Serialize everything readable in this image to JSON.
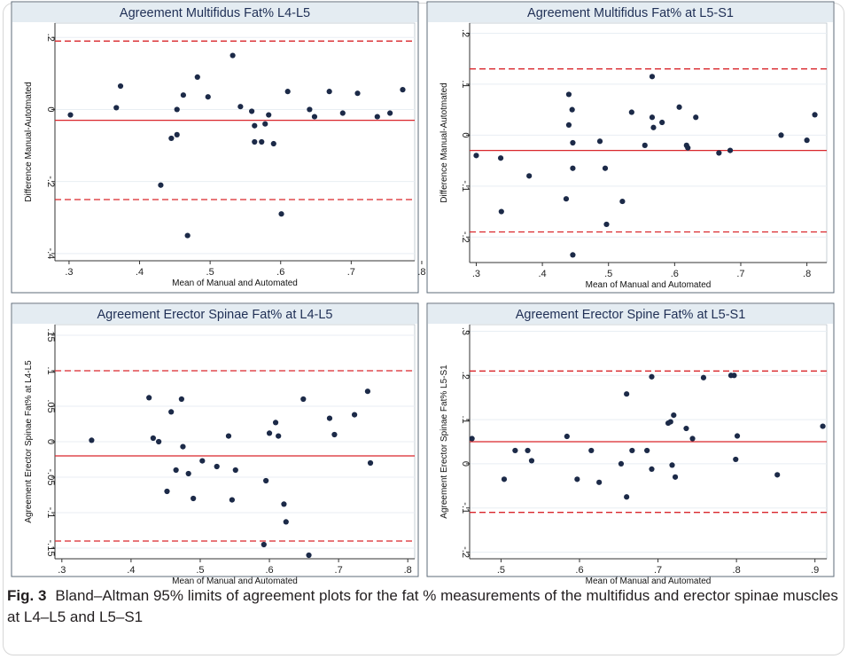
{
  "caption": {
    "label": "Fig. 3",
    "text": "Bland–Altman 95% limits of agreement plots for the fat % measurements of the multifidus and erector spinae muscles at L4–L5 and L5–S1"
  },
  "colors": {
    "mean_line": "#d9262b",
    "limit_line": "#d9262b",
    "point": "#1c2a48",
    "title_band": "#e4ecf2",
    "grid": "#e8eef3",
    "panel_border": "#5c6b7a"
  },
  "chart_data": [
    {
      "type": "scatter",
      "title": "Agreement Multifidus Fat% L4-L5",
      "xlabel": "Mean of Manual and Automated",
      "ylabel": "Difference Manual-Autotmated",
      "xlim": [
        0.28,
        0.79
      ],
      "ylim": [
        -0.42,
        0.24
      ],
      "xticks": [
        0.3,
        0.4,
        0.5,
        0.6,
        0.7,
        0.8
      ],
      "xtick_labels": [
        ".3",
        ".4",
        ".5",
        ".6",
        ".7",
        ".8"
      ],
      "yticks": [
        -0.4,
        -0.2,
        0,
        0.2
      ],
      "ytick_labels": [
        "-.4",
        "-.2",
        "0",
        ".2"
      ],
      "mean_difference": -0.03,
      "limits_of_agreement": [
        -0.25,
        0.19
      ],
      "grid": true,
      "points": [
        [
          0.302,
          -0.015
        ],
        [
          0.367,
          0.005
        ],
        [
          0.373,
          0.065
        ],
        [
          0.43,
          -0.21
        ],
        [
          0.445,
          -0.08
        ],
        [
          0.453,
          -0.07
        ],
        [
          0.453,
          0.0
        ],
        [
          0.462,
          0.04
        ],
        [
          0.468,
          -0.35
        ],
        [
          0.482,
          0.09
        ],
        [
          0.497,
          0.035
        ],
        [
          0.532,
          0.15
        ],
        [
          0.543,
          0.008
        ],
        [
          0.559,
          -0.005
        ],
        [
          0.563,
          -0.09
        ],
        [
          0.563,
          -0.045
        ],
        [
          0.573,
          -0.09
        ],
        [
          0.578,
          -0.04
        ],
        [
          0.583,
          -0.015
        ],
        [
          0.59,
          -0.095
        ],
        [
          0.601,
          -0.29
        ],
        [
          0.61,
          0.05
        ],
        [
          0.641,
          0.0
        ],
        [
          0.648,
          -0.02
        ],
        [
          0.669,
          0.05
        ],
        [
          0.688,
          -0.01
        ],
        [
          0.709,
          0.045
        ],
        [
          0.737,
          -0.02
        ],
        [
          0.755,
          -0.01
        ],
        [
          0.773,
          0.055
        ]
      ]
    },
    {
      "type": "scatter",
      "title": "Agreement Multifidus Fat% at L5-S1",
      "xlabel": "Mean of Manual and Automated",
      "ylabel": "Difference Manual-Autotmated",
      "xlim": [
        0.29,
        0.83
      ],
      "ylim": [
        -0.25,
        0.22
      ],
      "xticks": [
        0.3,
        0.4,
        0.5,
        0.6,
        0.7,
        0.8
      ],
      "xtick_labels": [
        ".3",
        ".4",
        ".5",
        ".6",
        ".7",
        ".8"
      ],
      "yticks": [
        -0.2,
        -0.1,
        0,
        0.1,
        0.2
      ],
      "ytick_labels": [
        "-.2",
        "-.1",
        "0",
        ".1",
        ".2"
      ],
      "mean_difference": -0.03,
      "limits_of_agreement": [
        -0.19,
        0.13
      ],
      "grid": true,
      "points": [
        [
          0.3,
          -0.04
        ],
        [
          0.337,
          -0.045
        ],
        [
          0.338,
          -0.15
        ],
        [
          0.38,
          -0.08
        ],
        [
          0.436,
          -0.125
        ],
        [
          0.44,
          0.08
        ],
        [
          0.44,
          0.02
        ],
        [
          0.445,
          0.05
        ],
        [
          0.446,
          -0.015
        ],
        [
          0.446,
          -0.065
        ],
        [
          0.446,
          -0.235
        ],
        [
          0.487,
          -0.012
        ],
        [
          0.495,
          -0.065
        ],
        [
          0.497,
          -0.175
        ],
        [
          0.521,
          -0.13
        ],
        [
          0.535,
          0.045
        ],
        [
          0.555,
          -0.02
        ],
        [
          0.566,
          0.115
        ],
        [
          0.566,
          0.035
        ],
        [
          0.568,
          0.015
        ],
        [
          0.581,
          0.025
        ],
        [
          0.607,
          0.055
        ],
        [
          0.618,
          -0.02
        ],
        [
          0.62,
          -0.025
        ],
        [
          0.632,
          0.035
        ],
        [
          0.667,
          -0.035
        ],
        [
          0.684,
          -0.03
        ],
        [
          0.761,
          0.0
        ],
        [
          0.8,
          -0.01
        ],
        [
          0.812,
          0.04
        ]
      ]
    },
    {
      "type": "scatter",
      "title": "Agreement Erector Spinae Fat% at L4-L5",
      "xlabel": "Mean of Manual and Automated",
      "ylabel": "Agreement Erector Spinae Fat% at L4-L5",
      "xlim": [
        0.29,
        0.81
      ],
      "ylim": [
        -0.165,
        0.165
      ],
      "xticks": [
        0.3,
        0.4,
        0.5,
        0.6,
        0.7,
        0.8
      ],
      "xtick_labels": [
        ".3",
        ".4",
        ".5",
        ".6",
        ".7",
        ".8"
      ],
      "yticks": [
        -0.15,
        -0.1,
        -0.05,
        0,
        0.05,
        0.1,
        0.15
      ],
      "ytick_labels": [
        "-.15",
        "-.1",
        "-.05",
        "0",
        ".05",
        ".1",
        ".15"
      ],
      "mean_difference": -0.02,
      "limits_of_agreement": [
        -0.14,
        0.1
      ],
      "grid": true,
      "points": [
        [
          0.343,
          0.002
        ],
        [
          0.426,
          0.062
        ],
        [
          0.432,
          0.005
        ],
        [
          0.44,
          0.0
        ],
        [
          0.452,
          -0.07
        ],
        [
          0.458,
          0.042
        ],
        [
          0.465,
          -0.04
        ],
        [
          0.473,
          0.06
        ],
        [
          0.475,
          -0.007
        ],
        [
          0.483,
          -0.045
        ],
        [
          0.49,
          -0.08
        ],
        [
          0.503,
          -0.027
        ],
        [
          0.524,
          -0.035
        ],
        [
          0.541,
          0.008
        ],
        [
          0.546,
          -0.082
        ],
        [
          0.551,
          -0.04
        ],
        [
          0.592,
          -0.145
        ],
        [
          0.595,
          -0.055
        ],
        [
          0.6,
          0.012
        ],
        [
          0.609,
          0.027
        ],
        [
          0.613,
          0.008
        ],
        [
          0.621,
          -0.088
        ],
        [
          0.624,
          -0.113
        ],
        [
          0.649,
          0.06
        ],
        [
          0.657,
          -0.16
        ],
        [
          0.687,
          0.033
        ],
        [
          0.694,
          0.01
        ],
        [
          0.723,
          0.038
        ],
        [
          0.742,
          0.071
        ],
        [
          0.746,
          -0.03
        ]
      ]
    },
    {
      "type": "scatter",
      "title": "Agreement Erector Spine Fat% at L5-S1",
      "xlabel": "Mean of Manual and Automated",
      "ylabel": "Agreement Erector Spinae Fat% L5-S1",
      "xlim": [
        0.46,
        0.915
      ],
      "ylim": [
        -0.215,
        0.315
      ],
      "xticks": [
        0.5,
        0.6,
        0.7,
        0.8,
        0.9
      ],
      "xtick_labels": [
        ".5",
        ".6",
        ".7",
        ".8",
        ".9"
      ],
      "yticks": [
        -0.2,
        -0.1,
        0,
        0.1,
        0.2,
        0.3
      ],
      "ytick_labels": [
        "-.2",
        "-.1",
        "0",
        ".1",
        ".2",
        ".3"
      ],
      "mean_difference": 0.05,
      "limits_of_agreement": [
        -0.11,
        0.21
      ],
      "grid": true,
      "points": [
        [
          0.463,
          0.057
        ],
        [
          0.504,
          -0.035
        ],
        [
          0.518,
          0.03
        ],
        [
          0.534,
          0.03
        ],
        [
          0.539,
          0.007
        ],
        [
          0.584,
          0.062
        ],
        [
          0.597,
          -0.035
        ],
        [
          0.615,
          0.03
        ],
        [
          0.625,
          -0.042
        ],
        [
          0.653,
          0.0
        ],
        [
          0.66,
          -0.075
        ],
        [
          0.66,
          0.158
        ],
        [
          0.667,
          0.03
        ],
        [
          0.686,
          0.03
        ],
        [
          0.692,
          -0.012
        ],
        [
          0.692,
          0.197
        ],
        [
          0.713,
          0.092
        ],
        [
          0.716,
          0.095
        ],
        [
          0.718,
          -0.003
        ],
        [
          0.72,
          0.11
        ],
        [
          0.722,
          -0.03
        ],
        [
          0.736,
          0.08
        ],
        [
          0.744,
          0.057
        ],
        [
          0.758,
          0.195
        ],
        [
          0.793,
          0.2
        ],
        [
          0.797,
          0.2
        ],
        [
          0.799,
          0.01
        ],
        [
          0.801,
          0.063
        ],
        [
          0.852,
          -0.025
        ],
        [
          0.91,
          0.085
        ]
      ]
    }
  ]
}
